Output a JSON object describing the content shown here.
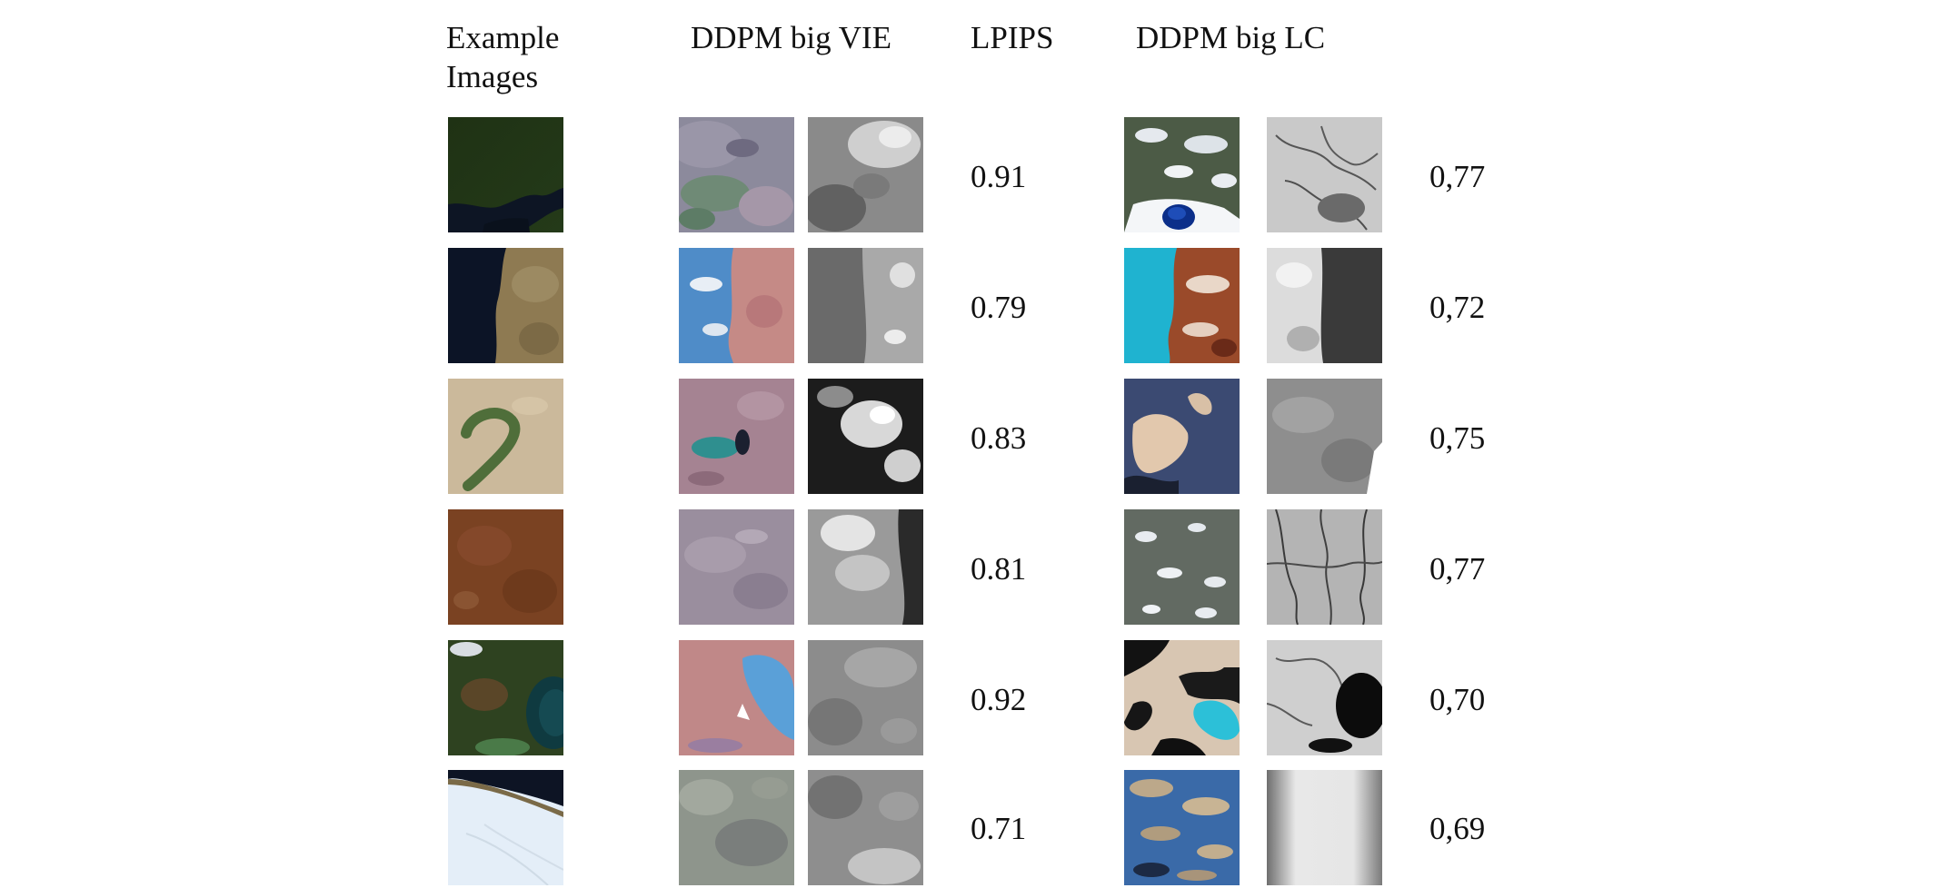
{
  "headers": {
    "example_line1": "Example",
    "example_line2": "Images",
    "vie": "DDPM big VIE",
    "lpips": "LPIPS",
    "lc": "DDPM big LC"
  },
  "rows": [
    {
      "vie_score": "0.91",
      "lc_score": "0,77"
    },
    {
      "vie_score": "0.79",
      "lc_score": "0,72"
    },
    {
      "vie_score": "0.83",
      "lc_score": "0,75"
    },
    {
      "vie_score": "0.81",
      "lc_score": "0,77"
    },
    {
      "vie_score": "0.92",
      "lc_score": "0,70"
    },
    {
      "vie_score": "0.71",
      "lc_score": "0,69"
    }
  ]
}
